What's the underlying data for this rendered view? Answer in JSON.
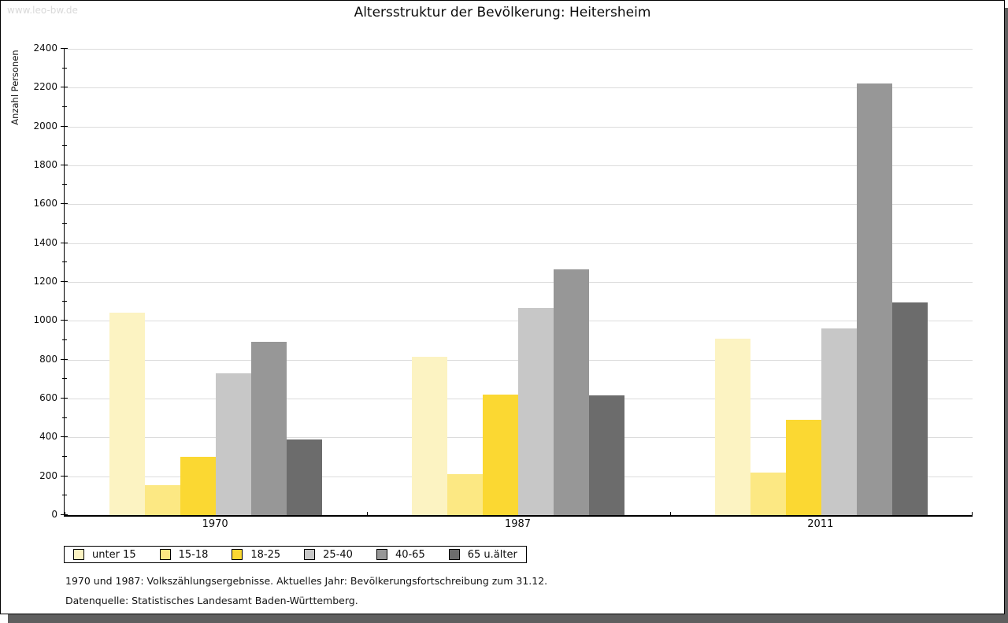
{
  "watermark": "www.leo-bw.de",
  "title": "Altersstruktur der Bevölkerung: Heitersheim",
  "footnotes": [
    "1970 und 1987: Volkszählungsergebnisse. Aktuelles Jahr: Bevölkerungsfortschreibung zum 31.12.",
    "Datenquelle: Statistisches Landesamt Baden-Württemberg."
  ],
  "chart_data": {
    "type": "bar",
    "title": "Altersstruktur der Bevölkerung: Heitersheim",
    "xlabel": "",
    "ylabel": "Anzahl Personen",
    "ylim": [
      0,
      2400
    ],
    "ytick_step": 200,
    "ytick_minor_step": 100,
    "grid": true,
    "legend_position": "bottom-left",
    "categories": [
      "1970",
      "1987",
      "2011"
    ],
    "series": [
      {
        "name": "unter 15",
        "color": "#fcf3c2",
        "values": [
          1040,
          815,
          910
        ]
      },
      {
        "name": "15-18",
        "color": "#fce883",
        "values": [
          155,
          210,
          220
        ]
      },
      {
        "name": "18-25",
        "color": "#fbd832",
        "values": [
          300,
          620,
          490
        ]
      },
      {
        "name": "25-40",
        "color": "#c7c7c7",
        "values": [
          730,
          1065,
          960
        ]
      },
      {
        "name": "40-65",
        "color": "#979797",
        "values": [
          890,
          1265,
          2220
        ]
      },
      {
        "name": "65 u.älter",
        "color": "#6c6c6c",
        "values": [
          390,
          615,
          1095
        ]
      }
    ]
  }
}
